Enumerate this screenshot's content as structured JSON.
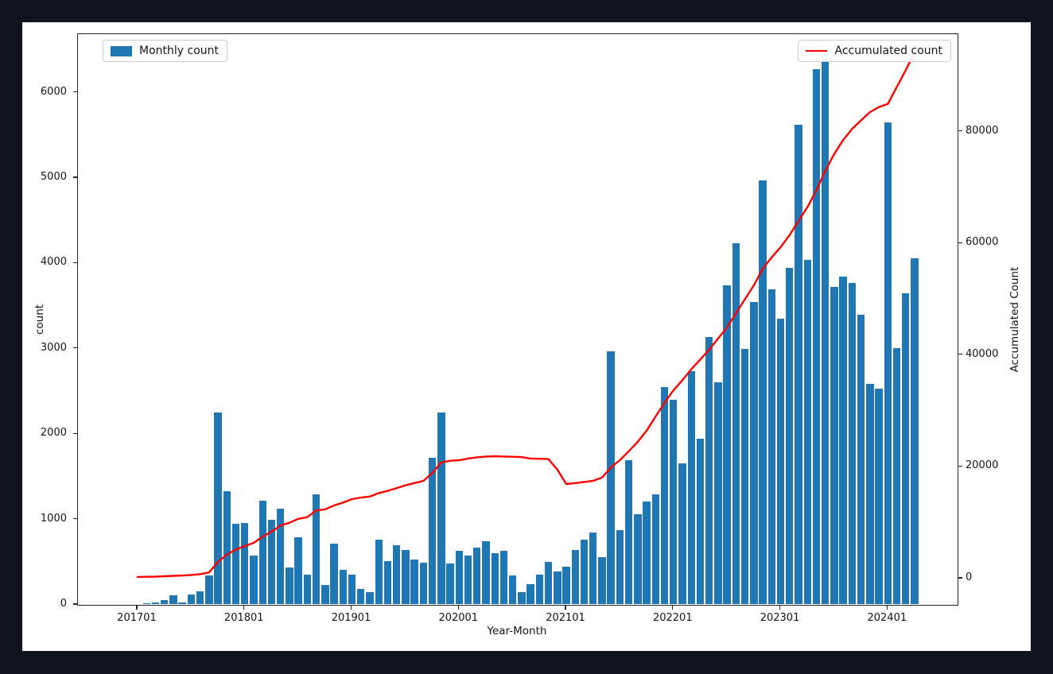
{
  "figure": {
    "background_color": "#0e131d",
    "canvas_color": "#ffffff",
    "bar_color": "#1f77b4",
    "line_color": "#ff0000",
    "xlabel": "Year-Month",
    "ylabel_left": "count",
    "ylabel_right": "Accumulated Count",
    "legend_left_label": "Monthly count",
    "legend_right_label": "Accumulated count"
  },
  "chart_data": {
    "type": "bar",
    "title": "",
    "xlabel": "Year-Month",
    "ylabel": "count",
    "ylabel_right": "Accumulated Count",
    "grid": false,
    "legend_positions": {
      "monthly": "upper left",
      "accumulated": "upper right"
    },
    "categories": [
      "2017-01",
      "2017-02",
      "2017-03",
      "2017-04",
      "2017-05",
      "2017-06",
      "2017-07",
      "2017-08",
      "2017-09",
      "2017-10",
      "2017-11",
      "2017-12",
      "2018-01",
      "2018-02",
      "2018-03",
      "2018-04",
      "2018-05",
      "2018-06",
      "2018-07",
      "2018-08",
      "2018-09",
      "2018-10",
      "2018-11",
      "2018-12",
      "2019-01",
      "2019-02",
      "2019-03",
      "2019-04",
      "2019-05",
      "2019-06",
      "2019-07",
      "2019-08",
      "2019-09",
      "2019-10",
      "2019-11",
      "2019-12",
      "2020-01",
      "2020-02",
      "2020-03",
      "2020-04",
      "2020-05",
      "2020-06",
      "2020-07",
      "2020-08",
      "2020-09",
      "2020-10",
      "2020-11",
      "2020-12",
      "2021-01",
      "2021-02",
      "2021-03",
      "2021-04",
      "2021-05",
      "2021-06",
      "2021-07",
      "2021-08",
      "2021-09",
      "2021-10",
      "2021-11",
      "2021-12",
      "2022-01",
      "2022-02",
      "2022-03",
      "2022-04",
      "2022-05",
      "2022-06",
      "2022-07",
      "2022-08",
      "2022-09",
      "2022-10",
      "2022-11",
      "2022-12",
      "2023-01",
      "2023-02",
      "2023-03",
      "2023-04",
      "2023-05",
      "2023-06",
      "2023-07",
      "2023-08",
      "2023-09",
      "2023-10",
      "2023-11",
      "2023-12",
      "2024-01",
      "2024-02",
      "2024-03",
      "2024-04"
    ],
    "series": [
      {
        "name": "Monthly count",
        "type": "bar",
        "axis": "left",
        "color": "#1f77b4",
        "values": [
          10,
          20,
          30,
          60,
          110,
          30,
          125,
          155,
          340,
          2250,
          1330,
          950,
          960,
          575,
          1220,
          1000,
          1130,
          440,
          790,
          355,
          1290,
          230,
          720,
          410,
          355,
          190,
          150,
          760,
          510,
          700,
          645,
          530,
          495,
          1720,
          2250,
          480,
          635,
          580,
          670,
          745,
          605,
          635,
          340,
          150,
          245,
          355,
          500,
          395,
          450,
          640,
          760,
          850,
          560,
          2970,
          875,
          1690,
          1060,
          1210,
          1290,
          2550,
          2400,
          1660,
          2740,
          1950,
          3140,
          2610,
          3740,
          4240,
          3000,
          3550,
          4970,
          3700,
          3350,
          3950,
          5620,
          4040,
          6280,
          6400,
          3720,
          3850,
          3770,
          3400,
          2590,
          2530,
          5650,
          3010,
          3650,
          4060
        ]
      },
      {
        "name": "Accumulated count",
        "type": "line",
        "axis": "right",
        "color": "#ff0000",
        "values": [
          300,
          330,
          360,
          420,
          500,
          550,
          650,
          800,
          1100,
          3000,
          4300,
          5200,
          5830,
          6400,
          7500,
          8400,
          9500,
          10000,
          10700,
          11000,
          12200,
          12400,
          13100,
          13600,
          14230,
          14500,
          14700,
          15300,
          15700,
          16200,
          16700,
          17100,
          17500,
          18900,
          20800,
          21100,
          21200,
          21500,
          21700,
          21850,
          21900,
          21850,
          21800,
          21750,
          21500,
          21450,
          21400,
          19500,
          16930,
          17100,
          17300,
          17500,
          18100,
          19900,
          21200,
          22800,
          24500,
          26500,
          29000,
          31500,
          33700,
          35500,
          37500,
          39200,
          41000,
          43000,
          45000,
          47500,
          50000,
          52500,
          55500,
          57500,
          59340,
          61500,
          64000,
          66500,
          69500,
          73000,
          76000,
          78500,
          80500,
          82000,
          83500,
          84400,
          84950,
          88000,
          91000,
          94200
        ]
      }
    ],
    "x_tick_labels": [
      "201701",
      "201801",
      "201901",
      "202001",
      "202101",
      "202201",
      "202301",
      "202401"
    ],
    "x_tick_indices": [
      0,
      12,
      24,
      36,
      48,
      60,
      72,
      84
    ],
    "left_axis": {
      "label": "count",
      "ticks": [
        0,
        1000,
        2000,
        3000,
        4000,
        5000,
        6000
      ],
      "range": [
        0,
        6690
      ]
    },
    "right_axis": {
      "label": "Accumulated Count",
      "ticks": [
        0,
        20000,
        40000,
        60000,
        80000
      ],
      "range": [
        -4800,
        97500
      ]
    }
  }
}
